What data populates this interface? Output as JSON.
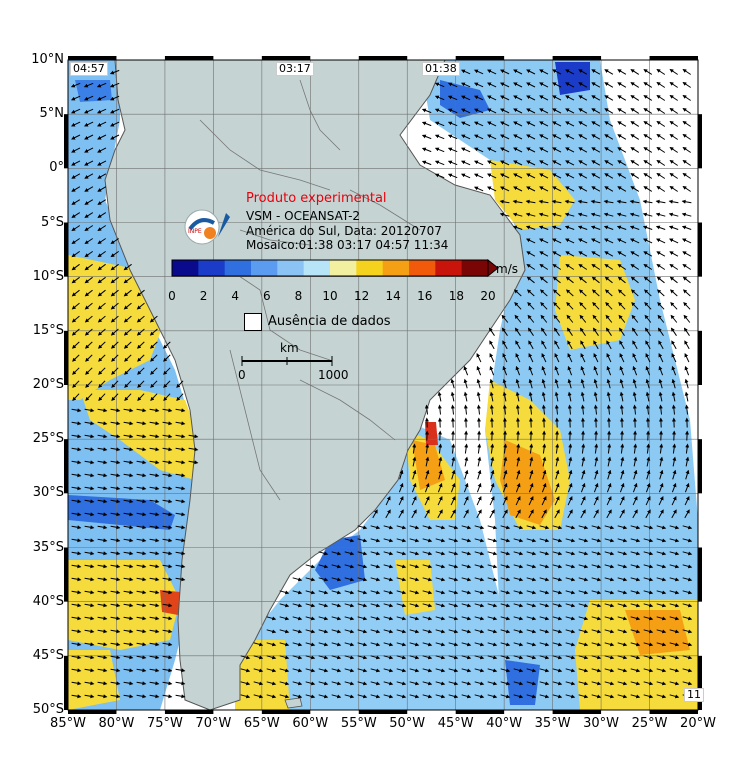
{
  "lat_labels": [
    "10°N",
    "5°N",
    "0°",
    "5°S",
    "10°S",
    "15°S",
    "20°S",
    "25°S",
    "30°S",
    "35°S",
    "40°S",
    "45°S",
    "50°S"
  ],
  "lon_labels": [
    "85°W",
    "80°W",
    "75°W",
    "70°W",
    "65°W",
    "60°W",
    "55°W",
    "50°W",
    "45°W",
    "40°W",
    "35°W",
    "30°W",
    "25°W",
    "20°W"
  ],
  "pass_times": {
    "left": "04:57",
    "center": "03:17",
    "right": "01:38",
    "corner": "11"
  },
  "title": {
    "experimental": "Produto experimental",
    "line1": "VSM - OCEANSAT-2",
    "line2": "América do Sul, Data: 20120707",
    "line3": "Mosaico:01:38 03:17 04:57 11:34"
  },
  "colorbar": {
    "ticks": [
      "0",
      "2",
      "4",
      "6",
      "8",
      "10",
      "12",
      "14",
      "16",
      "18",
      "20"
    ],
    "unit": "m/s",
    "colors": [
      "#0a0a8c",
      "#1a3cc8",
      "#2f6fe0",
      "#5b9cf0",
      "#8cc3f5",
      "#b8e4f8",
      "#f2f0a0",
      "#f5d21e",
      "#f5a014",
      "#f05a0a",
      "#c8140a",
      "#7a0505"
    ]
  },
  "legend": {
    "no_data": "Ausência de dados"
  },
  "scale_bar": {
    "unit": "km",
    "start": "0",
    "end": "1000"
  },
  "logo_text": "INPE",
  "colors": {
    "land": "#c5d3d3",
    "grid": "#6f6f6f",
    "ocean_slow": "#6aa8e8",
    "ocean_fast": "#f5d21e"
  }
}
